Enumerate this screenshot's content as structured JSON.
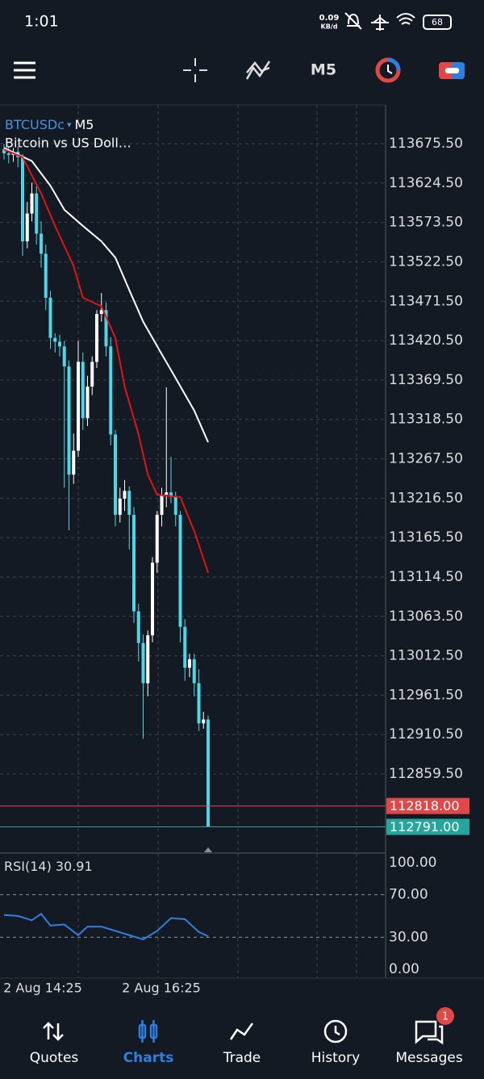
{
  "status_bar": {
    "time": "1:01",
    "net_speed": "0.09",
    "net_unit": "KB/d",
    "battery": "68"
  },
  "toolbar": {
    "timeframe": "M5"
  },
  "chart": {
    "symbol": "BTCUSDc",
    "timeframe": "M5",
    "description": "Bitcoin vs US Doll…",
    "price_ticks": [
      {
        "value": 113675.5,
        "label": "113675.50"
      },
      {
        "value": 113624.5,
        "label": "113624.50"
      },
      {
        "value": 113573.5,
        "label": "113573.50"
      },
      {
        "value": 113522.5,
        "label": "113522.50"
      },
      {
        "value": 113471.5,
        "label": "113471.50"
      },
      {
        "value": 113420.5,
        "label": "113420.50"
      },
      {
        "value": 113369.5,
        "label": "113369.50"
      },
      {
        "value": 113318.5,
        "label": "113318.50"
      },
      {
        "value": 113267.5,
        "label": "113267.50"
      },
      {
        "value": 113216.5,
        "label": "113216.50"
      },
      {
        "value": 113165.5,
        "label": "113165.50"
      },
      {
        "value": 113114.5,
        "label": "113114.50"
      },
      {
        "value": 113063.5,
        "label": "113063.50"
      },
      {
        "value": 113012.5,
        "label": "113012.50"
      },
      {
        "value": 112961.5,
        "label": "112961.50"
      },
      {
        "value": 112910.5,
        "label": "112910.50"
      },
      {
        "value": 112859.5,
        "label": "112859.50"
      }
    ],
    "candles": [
      [
        113668,
        113675,
        113655,
        113663
      ],
      [
        113663,
        113672,
        113650,
        113661
      ],
      [
        113661,
        113670,
        113652,
        113665
      ],
      [
        113665,
        113672,
        113645,
        113658
      ],
      [
        113658,
        113662,
        113530,
        113549
      ],
      [
        113549,
        113600,
        113540,
        113585
      ],
      [
        113585,
        113625,
        113575,
        113611
      ],
      [
        113611,
        113620,
        113545,
        113559
      ],
      [
        113559,
        113575,
        113515,
        113533
      ],
      [
        113533,
        113545,
        113460,
        113476
      ],
      [
        113476,
        113485,
        113410,
        113424
      ],
      [
        113424,
        113430,
        113405,
        113419
      ],
      [
        113419,
        113428,
        113400,
        113413
      ],
      [
        113413,
        113420,
        113230,
        113387
      ],
      [
        113387,
        113395,
        113175,
        113247
      ],
      [
        113247,
        113300,
        113235,
        113278
      ],
      [
        113278,
        113420,
        113270,
        113393
      ],
      [
        113393,
        113405,
        113305,
        113320
      ],
      [
        113320,
        113375,
        113310,
        113361
      ],
      [
        113361,
        113400,
        113350,
        113393
      ],
      [
        113393,
        113460,
        113385,
        113455
      ],
      [
        113455,
        113482,
        113445,
        113460
      ],
      [
        113460,
        113470,
        113400,
        113413
      ],
      [
        113413,
        113425,
        113285,
        113299
      ],
      [
        113299,
        113305,
        113180,
        113195
      ],
      [
        113195,
        113230,
        113185,
        113216
      ],
      [
        113216,
        113240,
        113200,
        113226
      ],
      [
        113226,
        113232,
        113150,
        113195
      ],
      [
        113195,
        113205,
        113055,
        113070
      ],
      [
        113070,
        113080,
        113005,
        113029
      ],
      [
        113029,
        113040,
        112905,
        112977
      ],
      [
        112977,
        113045,
        112960,
        113039
      ],
      [
        113039,
        113140,
        113030,
        113133
      ],
      [
        113133,
        113200,
        113120,
        113195
      ],
      [
        113195,
        113230,
        113180,
        113221
      ],
      [
        113221,
        113360,
        113205,
        113224
      ],
      [
        113224,
        113270,
        113210,
        113218
      ],
      [
        113218,
        113225,
        113180,
        113195
      ],
      [
        113195,
        113200,
        113030,
        113050
      ],
      [
        113050,
        113060,
        112980,
        112997
      ],
      [
        112997,
        113015,
        112985,
        113008
      ],
      [
        113008,
        113015,
        112960,
        112977
      ],
      [
        112977,
        112995,
        112915,
        112925
      ],
      [
        112925,
        112940,
        112918,
        112930
      ],
      [
        112930,
        112935,
        112791,
        112791
      ]
    ],
    "ma_fast": {
      "color": "#e01414",
      "index": [
        0,
        4,
        8,
        11,
        15,
        17,
        21,
        24,
        26,
        29,
        31,
        33,
        38,
        41,
        44
      ],
      "values": [
        113668,
        113658,
        113611,
        113569,
        113517,
        113476,
        113465,
        113424,
        113361,
        113299,
        113247,
        113221,
        113218,
        113174,
        113120
      ]
    },
    "ma_slow": {
      "color": "#ffffff",
      "index": [
        0,
        6,
        10,
        13,
        17,
        21,
        24,
        27,
        30,
        34,
        37,
        41,
        44
      ],
      "values": [
        113670,
        113653,
        113621,
        113590,
        113569,
        113549,
        113528,
        113486,
        113445,
        113403,
        113372,
        113330,
        113289
      ]
    },
    "price_lines": [
      {
        "value": 112818,
        "label": "112818.00",
        "color": "#e04848"
      },
      {
        "value": 112791,
        "label": "112791.00",
        "color": "#26a69a"
      }
    ],
    "time_labels": [
      "2 Aug 14:25",
      "2 Aug 16:25"
    ],
    "rsi": {
      "title": "RSI(14)",
      "value": 30.91,
      "color": "#2f7fe0",
      "ylim": [
        0,
        100
      ],
      "ticks": [
        {
          "value": 100,
          "label": "100.00"
        },
        {
          "value": 70,
          "label": "70.00"
        },
        {
          "value": 30,
          "label": "30.00"
        },
        {
          "value": 0,
          "label": "0.00"
        }
      ],
      "index": [
        0,
        3,
        6,
        8,
        10,
        13,
        16,
        18,
        21,
        24,
        27,
        30,
        33,
        36,
        39,
        42,
        44
      ],
      "values": [
        51,
        50,
        46,
        52,
        41,
        42,
        32,
        40,
        40,
        36,
        32,
        28,
        36,
        48,
        47,
        35,
        30.91
      ]
    }
  },
  "nav": {
    "items": [
      "Quotes",
      "Charts",
      "Trade",
      "History",
      "Messages"
    ],
    "active": 1,
    "badge": "1"
  }
}
